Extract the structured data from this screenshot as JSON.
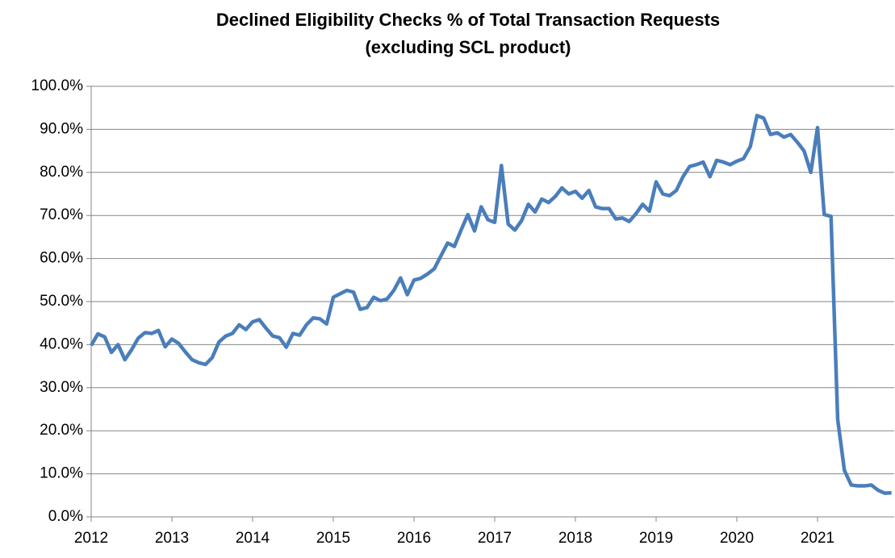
{
  "chart_data": {
    "type": "line",
    "title": "Declined Eligibility Checks % of Total Transaction Requests",
    "subtitle": "(excluding SCL product)",
    "x": [
      2012,
      2012.083,
      2012.167,
      2012.25,
      2012.333,
      2012.417,
      2012.5,
      2012.583,
      2012.667,
      2012.75,
      2012.833,
      2012.917,
      2013,
      2013.083,
      2013.167,
      2013.25,
      2013.333,
      2013.417,
      2013.5,
      2013.583,
      2013.667,
      2013.75,
      2013.833,
      2013.917,
      2014,
      2014.083,
      2014.167,
      2014.25,
      2014.333,
      2014.417,
      2014.5,
      2014.583,
      2014.667,
      2014.75,
      2014.833,
      2014.917,
      2015,
      2015.083,
      2015.167,
      2015.25,
      2015.333,
      2015.417,
      2015.5,
      2015.583,
      2015.667,
      2015.75,
      2015.833,
      2015.917,
      2016,
      2016.083,
      2016.167,
      2016.25,
      2016.333,
      2016.417,
      2016.5,
      2016.583,
      2016.667,
      2016.75,
      2016.833,
      2016.917,
      2017,
      2017.083,
      2017.167,
      2017.25,
      2017.333,
      2017.417,
      2017.5,
      2017.583,
      2017.667,
      2017.75,
      2017.833,
      2017.917,
      2018,
      2018.083,
      2018.167,
      2018.25,
      2018.333,
      2018.417,
      2018.5,
      2018.583,
      2018.667,
      2018.75,
      2018.833,
      2018.917,
      2019,
      2019.083,
      2019.167,
      2019.25,
      2019.333,
      2019.417,
      2019.5,
      2019.583,
      2019.667,
      2019.75,
      2019.833,
      2019.917,
      2020,
      2020.083,
      2020.167,
      2020.25,
      2020.333,
      2020.417,
      2020.5,
      2020.583,
      2020.667,
      2020.75,
      2020.833,
      2020.917,
      2021,
      2021.083,
      2021.167,
      2021.25,
      2021.333,
      2021.417,
      2021.5,
      2021.583,
      2021.667,
      2021.75,
      2021.833,
      2021.917
    ],
    "series": [
      {
        "color": "#4a7ebb",
        "values": [
          39.8,
          42.5,
          41.8,
          38.2,
          40.0,
          36.5,
          38.8,
          41.5,
          42.8,
          42.6,
          43.3,
          39.5,
          41.3,
          40.3,
          38.3,
          36.5,
          35.8,
          35.4,
          37.0,
          40.6,
          42.0,
          42.6,
          44.6,
          43.5,
          45.3,
          45.8,
          43.8,
          42.0,
          41.6,
          39.4,
          42.6,
          42.2,
          44.6,
          46.2,
          46.0,
          44.8,
          51.0,
          51.8,
          52.6,
          52.2,
          48.2,
          48.6,
          51.0,
          50.2,
          50.6,
          52.6,
          55.5,
          51.6,
          55.0,
          55.4,
          56.4,
          57.6,
          60.6,
          63.6,
          62.8,
          66.6,
          70.2,
          66.4,
          72.0,
          69.0,
          68.4,
          81.6,
          68.0,
          66.6,
          68.8,
          72.6,
          70.8,
          73.8,
          73.0,
          74.4,
          76.4,
          75.0,
          75.6,
          74.0,
          75.8,
          72.0,
          71.6,
          71.6,
          69.2,
          69.4,
          68.6,
          70.4,
          72.6,
          71.0,
          77.8,
          75.0,
          74.6,
          75.8,
          79.0,
          81.4,
          81.8,
          82.4,
          79.0,
          82.8,
          82.4,
          81.8,
          82.6,
          83.2,
          86.0,
          93.2,
          92.6,
          88.8,
          89.2,
          88.2,
          88.8,
          87.0,
          85.0,
          80.0,
          90.4,
          70.2,
          69.8,
          22.6,
          10.8,
          7.4,
          7.2,
          7.2,
          7.4,
          6.2,
          5.5,
          5.6
        ]
      }
    ],
    "xlim": [
      2012,
      2021.95
    ],
    "xticks": [
      2012,
      2013,
      2014,
      2015,
      2016,
      2017,
      2018,
      2019,
      2020,
      2021
    ],
    "ylim": [
      0,
      100
    ],
    "yticks": [
      {
        "value": 0,
        "label": "0.0%"
      },
      {
        "value": 10,
        "label": "10.0%"
      },
      {
        "value": 20,
        "label": "20.0%"
      },
      {
        "value": 30,
        "label": "30.0%"
      },
      {
        "value": 40,
        "label": "40.0%"
      },
      {
        "value": 50,
        "label": "50.0%"
      },
      {
        "value": 60,
        "label": "60.0%"
      },
      {
        "value": 70,
        "label": "70.0%"
      },
      {
        "value": 80,
        "label": "80.0%"
      },
      {
        "value": 90,
        "label": "90.0%"
      },
      {
        "value": 100,
        "label": "100.0%"
      }
    ],
    "grid": true
  }
}
